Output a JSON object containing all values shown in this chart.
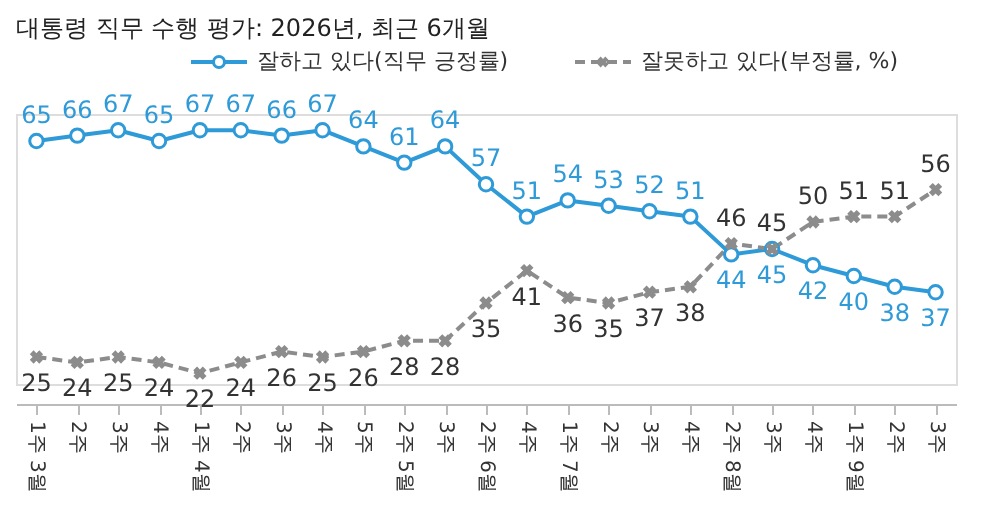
{
  "chart_data": {
    "type": "line",
    "title": "대통령 직무 수행 평가: 2026년, 최근 6개월",
    "categories": [
      "1주 3월",
      "2주",
      "3주",
      "4주",
      "1주 4월",
      "2주",
      "3주",
      "4주",
      "5주",
      "2주 5월",
      "3주",
      "2주 6월",
      "4주",
      "1주 7월",
      "2주",
      "3주",
      "4주",
      "2주 8월",
      "3주",
      "4주",
      "1주 9월",
      "2주",
      "3주"
    ],
    "series": [
      {
        "name": "잘하고 있다(직무 긍정률)",
        "color": "#2e9ad8",
        "line_style": "solid",
        "marker": "circle",
        "values": [
          65,
          66,
          67,
          65,
          67,
          67,
          66,
          67,
          64,
          61,
          64,
          57,
          51,
          54,
          53,
          52,
          51,
          44,
          45,
          42,
          40,
          38,
          37
        ]
      },
      {
        "name": "잘못하고 있다(부정률, %)",
        "color": "#8c8c8c",
        "line_style": "dashed",
        "marker": "cross",
        "values": [
          25,
          24,
          25,
          24,
          22,
          24,
          26,
          25,
          26,
          28,
          28,
          35,
          41,
          36,
          35,
          37,
          38,
          46,
          45,
          50,
          51,
          51,
          56
        ]
      }
    ],
    "data_labels": true,
    "legend": "top right",
    "grid": false
  }
}
